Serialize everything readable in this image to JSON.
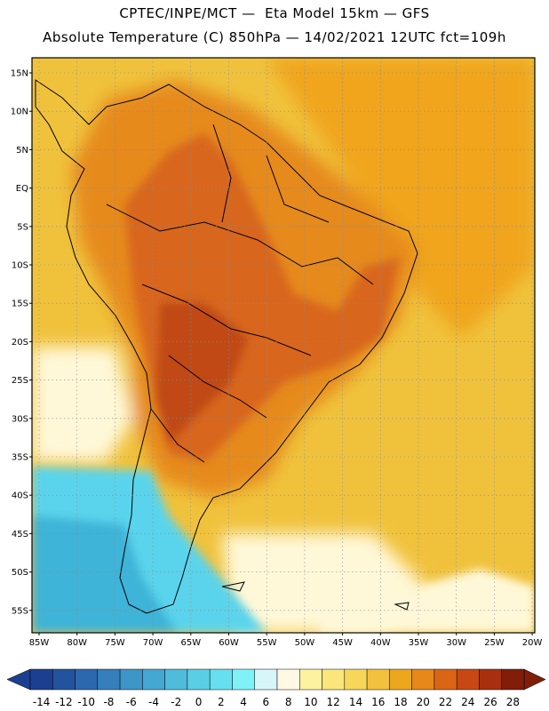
{
  "header": {
    "line1": "CPTEC/INPE/MCT —  Eta Model 15km — GFS",
    "line2": "Absolute Temperature (C) 850hPa — 14/02/2021 12UTC fct=109h"
  },
  "map": {
    "lat_labels": [
      "15N",
      "10N",
      "5N",
      "EQ",
      "5S",
      "10S",
      "15S",
      "20S",
      "25S",
      "30S",
      "35S",
      "40S",
      "45S",
      "50S",
      "55S"
    ],
    "lon_labels": [
      "85W",
      "80W",
      "75W",
      "70W",
      "65W",
      "60W",
      "55W",
      "50W",
      "45W",
      "40W",
      "35W",
      "30W",
      "25W",
      "20W"
    ],
    "colors": {
      "ocean_warm": "#f0c23c",
      "ocean_hot": "#f0a51e",
      "land_hot": "#e68a1c",
      "land_very_hot": "#d8661a",
      "land_extreme": "#c04a12",
      "cool_pale": "#fff8d8",
      "cold_cyan": "#5ad4ec",
      "cold_blue": "#3cb4d8",
      "coast": "#000000"
    }
  },
  "colorbar": {
    "labels": [
      "-14",
      "-12",
      "-10",
      "-8",
      "-6",
      "-4",
      "-2",
      "0",
      "2",
      "4",
      "6",
      "8",
      "10",
      "12",
      "14",
      "16",
      "18",
      "20",
      "22",
      "24",
      "26",
      "28"
    ],
    "colors": [
      "#1c3f8f",
      "#24539e",
      "#2c68ae",
      "#357fbd",
      "#3d95c8",
      "#45a8d2",
      "#4fbcdb",
      "#5acee4",
      "#66e0ee",
      "#7ff2f8",
      "#d6f6fa",
      "#fff8e4",
      "#fdf2a0",
      "#fae67a",
      "#f6d75a",
      "#f2c13d",
      "#eca71f",
      "#e6881a",
      "#dc6416",
      "#c84813",
      "#a8300e",
      "#801e0a"
    ]
  }
}
